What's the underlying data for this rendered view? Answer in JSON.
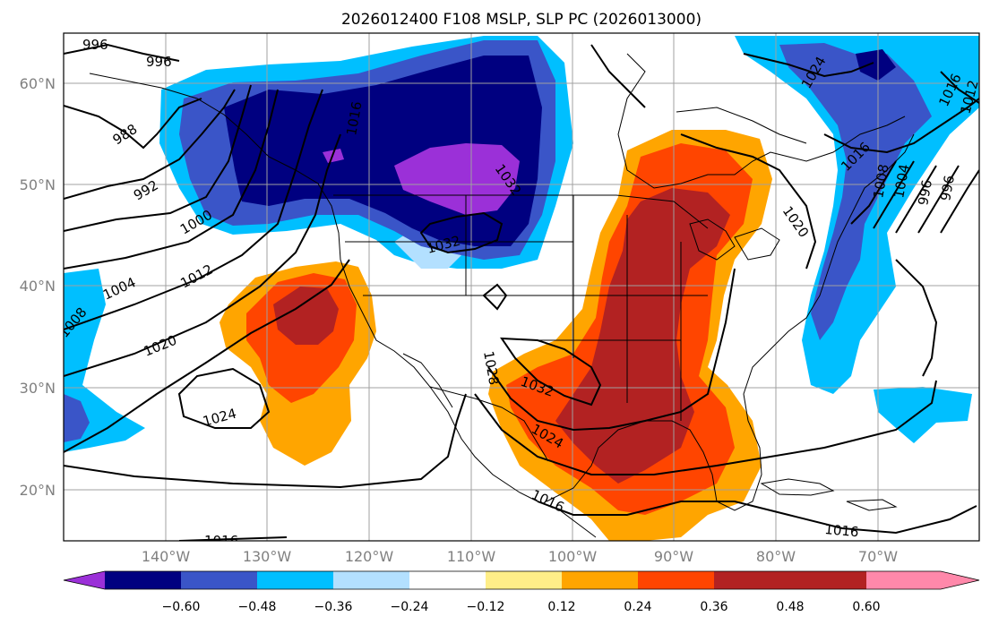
{
  "title": "2026012400 F108 MSLP, SLP PC (2026013000)",
  "axes": {
    "lat_labels": [
      "60°N",
      "50°N",
      "40°N",
      "30°N",
      "20°N"
    ],
    "lon_labels": [
      "140°W",
      "130°W",
      "120°W",
      "110°W",
      "100°W",
      "90°W",
      "80°W",
      "70°W"
    ]
  },
  "colorbar": {
    "ticks": [
      "−0.60",
      "−0.48",
      "−0.36",
      "−0.24",
      "−0.12",
      "0.12",
      "0.24",
      "0.36",
      "0.48",
      "0.60"
    ],
    "colors": [
      "#9b30d8",
      "#000080",
      "#3a55c8",
      "#00bfff",
      "#b3e0ff",
      "#ffffff",
      "#ffee88",
      "#ffa500",
      "#ff4500",
      "#b22222",
      "#ff88aa"
    ]
  },
  "isobar_labels": [
    "996",
    "996",
    "988",
    "992",
    "1000",
    "1004",
    "1012",
    "1020",
    "1024",
    "1008",
    "1032",
    "1032",
    "1016",
    "1032",
    "1028",
    "1024",
    "1016",
    "1016",
    "1016",
    "1016",
    "1020",
    "1024",
    "1016",
    "1008",
    "1004",
    "996",
    "996",
    "1012"
  ],
  "regions": {
    "neg_colors": [
      "#00bfff",
      "#3a55c8",
      "#000080",
      "#9b30d8"
    ],
    "pos_colors": [
      "#ffa500",
      "#ff4500",
      "#b22222"
    ]
  }
}
